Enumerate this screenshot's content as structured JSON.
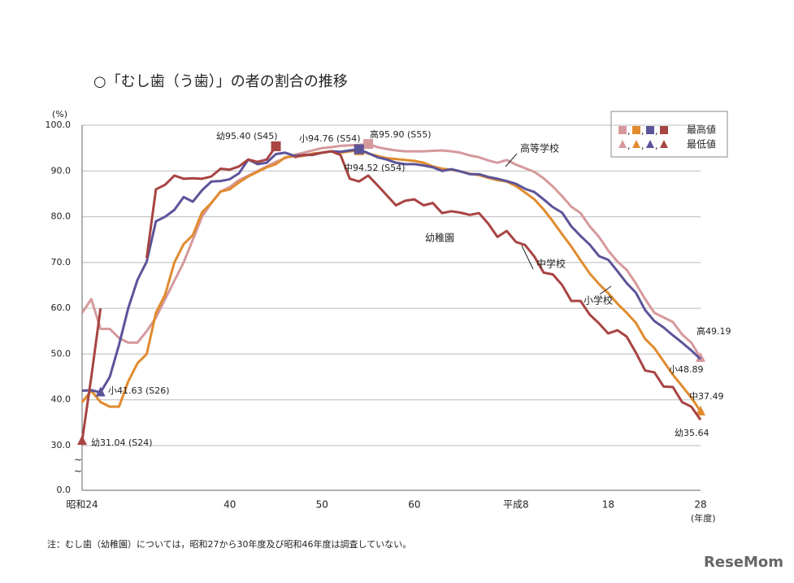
{
  "chart_data": {
    "type": "line",
    "title": "○「むし歯（う歯）」の者の割合の推移",
    "y_unit": "(%)",
    "x_unit": "(年度)",
    "note": "注：むし歯（幼稚園）については，昭和27から30年度及び昭和46年度は調査していない。",
    "watermark": "ReseMom",
    "categories": [
      "昭和24",
      null,
      null,
      null,
      null,
      null,
      null,
      null,
      null,
      null,
      null,
      null,
      null,
      null,
      null,
      null,
      "40",
      null,
      null,
      null,
      null,
      null,
      null,
      null,
      null,
      null,
      "50",
      null,
      null,
      null,
      null,
      null,
      null,
      null,
      null,
      null,
      "60",
      null,
      null,
      null,
      null,
      null,
      null,
      null,
      null,
      null,
      null,
      "平成8",
      null,
      null,
      null,
      null,
      null,
      null,
      null,
      null,
      null,
      "18",
      null,
      null,
      null,
      null,
      null,
      null,
      null,
      null,
      null,
      "28"
    ],
    "ylim": [
      0,
      100
    ],
    "yticks": [
      {
        "value": 0,
        "label": "0.0"
      },
      {
        "value": 30,
        "label": "30.0"
      },
      {
        "value": 40,
        "label": "40.0"
      },
      {
        "value": 50,
        "label": "50.0"
      },
      {
        "value": 60,
        "label": "60.0"
      },
      {
        "value": 70,
        "label": "70.0"
      },
      {
        "value": 80,
        "label": "80.0"
      },
      {
        "value": 90,
        "label": "90.0"
      },
      {
        "value": 100,
        "label": "100.0"
      }
    ],
    "grid": true,
    "legend": {
      "separator": ",",
      "max_label": "最高値",
      "min_label": "最低値"
    },
    "series": [
      {
        "name": "高等学校",
        "color": "#d5999c",
        "values": [
          59,
          62,
          55.5,
          55.5,
          53.5,
          52.5,
          52.5,
          55,
          58,
          62,
          66,
          70,
          75,
          80,
          83,
          85.5,
          86.5,
          88,
          89,
          90,
          91,
          92,
          92.8,
          93.5,
          94,
          94.5,
          95,
          95.2,
          95.5,
          95.6,
          95.7,
          95.9,
          95.2,
          94.8,
          94.5,
          94.3,
          94.3,
          94.3,
          94.4,
          94.5,
          94.3,
          94.0,
          93.4,
          93.0,
          92.3,
          91.8,
          92.4,
          91.4,
          90.6,
          89.8,
          88.4,
          86.6,
          84.5,
          82.2,
          80.8,
          77.9,
          75.6,
          72.6,
          70.2,
          68.4,
          65.4,
          62.0,
          59.0,
          58.0,
          57.0,
          54.3,
          52.5,
          49.19
        ]
      },
      {
        "name": "中学校",
        "color": "#e18b2e",
        "values": [
          39.5,
          42,
          39.5,
          38.5,
          38.5,
          44,
          48,
          50,
          59,
          63,
          70,
          74,
          76,
          81,
          83,
          85.5,
          86,
          87.5,
          88.8,
          89.8,
          90.8,
          91.5,
          93,
          93.2,
          93.3,
          93.8,
          94.0,
          94.3,
          94.0,
          94.3,
          94.52,
          93.8,
          93.3,
          92.8,
          92.6,
          92.4,
          92.2,
          91.8,
          91.0,
          90.5,
          90.3,
          89.9,
          89.4,
          89.1,
          88.5,
          88.0,
          87.7,
          86.7,
          85.3,
          83.8,
          81.6,
          79.0,
          76.2,
          73.5,
          70.5,
          67.6,
          65.3,
          63.3,
          61.0,
          59.0,
          56.8,
          53.3,
          51.3,
          48.4,
          45.5,
          43.0,
          40.5,
          37.49
        ]
      },
      {
        "name": "小学校",
        "color": "#5c5499",
        "values": [
          42.0,
          42.1,
          41.63,
          45,
          52,
          60,
          66.2,
          70.2,
          79,
          80,
          81.5,
          84.3,
          83.3,
          85.8,
          87.7,
          87.8,
          88.2,
          89.5,
          92.5,
          91.5,
          91.8,
          93.7,
          94.0,
          93.3,
          93.5,
          93.5,
          94.0,
          94.3,
          94.2,
          94.5,
          94.76,
          93.9,
          93.0,
          92.5,
          91.8,
          91.5,
          91.5,
          91.2,
          90.8,
          90.0,
          90.4,
          89.9,
          89.3,
          89.3,
          88.7,
          88.3,
          87.8,
          87.2,
          86.1,
          85.4,
          83.8,
          82.1,
          80.9,
          77.9,
          75.8,
          73.9,
          71.4,
          70.6,
          68.1,
          65.5,
          63.4,
          59.6,
          57.2,
          55.8,
          54.1,
          52.5,
          50.8,
          48.89
        ]
      },
      {
        "name": "幼稚園",
        "color": "#a84442",
        "values": [
          31.04,
          45,
          60,
          null,
          null,
          null,
          null,
          71,
          86,
          87,
          89,
          88.3,
          88.4,
          88.3,
          88.8,
          90.5,
          90.3,
          91,
          92.5,
          92,
          92.5,
          95.4,
          null,
          93,
          93.5,
          93.6,
          94,
          94.3,
          93.5,
          88.3,
          87.7,
          89,
          86.9,
          84.7,
          82.5,
          83.5,
          83.8,
          82.5,
          83,
          80.8,
          81.2,
          80.9,
          80.4,
          80.8,
          78.5,
          75.6,
          76.9,
          74.5,
          73.8,
          71.3,
          67.8,
          67.4,
          65.1,
          61.6,
          61.6,
          58.6,
          56.7,
          54.5,
          55.2,
          53.8,
          50.3,
          46.4,
          46.0,
          42.9,
          42.8,
          39.5,
          38.5,
          35.64
        ]
      }
    ],
    "annotations": [
      "幼95.40 (S45)",
      "小94.76 (S54)",
      "高95.90 (S55)",
      "中94.52 (S54)",
      "小41.63 (S26)",
      "幼31.04 (S24)",
      "高49.19",
      "小48.89",
      "中37.49",
      "幼35.64"
    ]
  }
}
